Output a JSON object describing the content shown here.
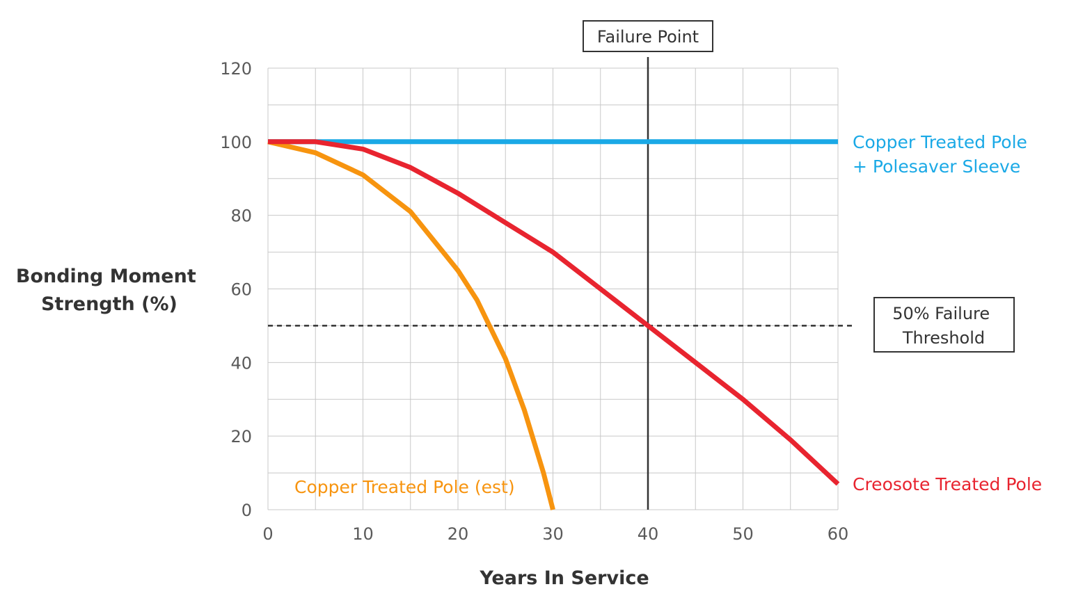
{
  "chart_data": {
    "type": "line",
    "title": "",
    "xlabel": "Years In Service",
    "ylabel": [
      "Bonding Moment",
      "Strength (%)"
    ],
    "xlim": [
      0,
      60
    ],
    "ylim": [
      0,
      120
    ],
    "x_ticks": [
      0,
      10,
      20,
      30,
      40,
      50,
      60
    ],
    "y_ticks": [
      0,
      20,
      40,
      60,
      80,
      100,
      120
    ],
    "grid": true,
    "series": [
      {
        "name": [
          "Copper Treated Pole",
          "+ Polesaver Sleeve"
        ],
        "color": "#1aa9e6",
        "x": [
          0,
          60
        ],
        "y": [
          100,
          100
        ]
      },
      {
        "name": [
          "Creosote Treated Pole"
        ],
        "color": "#e8242f",
        "x": [
          0,
          5,
          10,
          15,
          20,
          25,
          30,
          35,
          40,
          45,
          50,
          55,
          60
        ],
        "y": [
          100,
          100,
          98,
          93,
          86,
          78,
          70,
          60,
          50,
          40,
          30,
          19,
          7
        ]
      },
      {
        "name": [
          "Copper Treated Pole (est)"
        ],
        "color": "#f7940f",
        "x": [
          0,
          5,
          10,
          15,
          20,
          22,
          25,
          27,
          29,
          30
        ],
        "y": [
          100,
          97,
          91,
          81,
          65,
          57,
          41,
          27,
          10,
          0
        ]
      }
    ],
    "annotations": {
      "failure_point": {
        "label": "Failure Point",
        "x": 40
      },
      "threshold": {
        "label": [
          "50% Failure",
          "Threshold"
        ],
        "y": 50
      }
    }
  }
}
